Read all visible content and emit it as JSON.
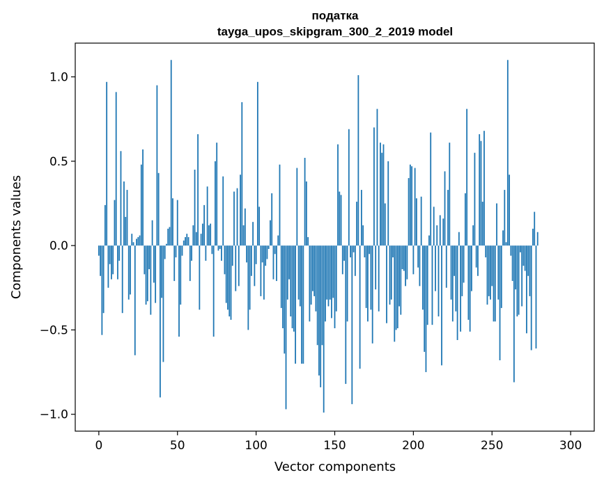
{
  "chart_data": {
    "type": "bar",
    "title": "податка",
    "subtitle": "tayga_upos_skipgram_300_2_2019 model",
    "xlabel": "Vector components",
    "ylabel": "Components values",
    "xlim": [
      -15,
      315
    ],
    "ylim": [
      -1.1,
      1.2
    ],
    "xticks": [
      0,
      50,
      100,
      150,
      200,
      250,
      300
    ],
    "yticks": [
      -1.0,
      -0.5,
      0.0,
      0.5,
      1.0
    ],
    "xtick_labels": [
      "0",
      "50",
      "100",
      "150",
      "200",
      "250",
      "300"
    ],
    "ytick_labels": [
      "−1.0",
      "−0.5",
      "0.0",
      "0.5",
      "1.0"
    ],
    "bar_color": "#1f77b4",
    "grid": false,
    "values": [
      -0.06,
      -0.18,
      -0.53,
      -0.4,
      0.24,
      0.97,
      -0.25,
      -0.11,
      -0.2,
      -0.17,
      0.27,
      0.91,
      -0.2,
      -0.09,
      0.56,
      -0.4,
      0.38,
      0.17,
      0.33,
      -0.32,
      -0.29,
      0.07,
      0.02,
      -0.65,
      0.04,
      0.05,
      0.06,
      0.48,
      0.57,
      -0.17,
      -0.35,
      -0.33,
      -0.14,
      -0.41,
      0.15,
      -0.22,
      -0.34,
      0.95,
      0.43,
      -0.9,
      -0.31,
      -0.69,
      -0.08,
      0.01,
      0.1,
      0.11,
      1.1,
      0.28,
      -0.21,
      -0.07,
      0.27,
      -0.54,
      -0.35,
      -0.06,
      0.03,
      0.05,
      0.07,
      0.05,
      -0.21,
      -0.09,
      0.12,
      0.45,
      0.08,
      0.66,
      -0.38,
      0.07,
      0.13,
      0.24,
      -0.09,
      0.35,
      0.12,
      0.13,
      -0.05,
      -0.54,
      0.5,
      0.61,
      -0.03,
      -0.02,
      -0.09,
      0.41,
      -0.17,
      -0.34,
      -0.38,
      -0.42,
      -0.44,
      -0.12,
      0.32,
      -0.27,
      0.34,
      -0.24,
      0.42,
      0.85,
      0.12,
      0.22,
      -0.1,
      -0.5,
      -0.38,
      -0.18,
      0.14,
      -0.24,
      -0.11,
      0.97,
      0.23,
      -0.3,
      -0.1,
      -0.32,
      -0.12,
      -0.08,
      -0.02,
      0.15,
      0.31,
      -0.2,
      -0.05,
      -0.21,
      0.06,
      0.48,
      -0.37,
      -0.49,
      -0.64,
      -0.97,
      -0.32,
      -0.2,
      -0.42,
      -0.49,
      -0.51,
      -0.7,
      0.46,
      -0.32,
      -0.36,
      -0.7,
      -0.7,
      0.52,
      0.38,
      0.05,
      -0.45,
      -0.35,
      -0.27,
      -0.3,
      -0.39,
      -0.59,
      -0.77,
      -0.84,
      -0.59,
      -0.99,
      -0.45,
      -0.32,
      -0.36,
      -0.32,
      -0.43,
      -0.31,
      -0.49,
      -0.39,
      0.6,
      0.32,
      0.3,
      -0.17,
      -0.09,
      -0.82,
      -0.45,
      0.69,
      -0.07,
      -0.94,
      -0.04,
      -0.18,
      0.26,
      1.01,
      -0.73,
      0.33,
      0.12,
      -0.07,
      -0.37,
      -0.45,
      -0.05,
      -0.38,
      -0.58,
      0.7,
      -0.26,
      0.81,
      -0.39,
      0.61,
      0.55,
      0.6,
      0.25,
      -0.46,
      0.5,
      -0.35,
      -0.32,
      -0.07,
      -0.57,
      -0.5,
      -0.49,
      -0.36,
      -0.41,
      -0.14,
      -0.15,
      -0.24,
      -0.2,
      0.4,
      0.48,
      0.47,
      -0.17,
      0.46,
      0.28,
      -0.13,
      -0.24,
      0.29,
      -0.38,
      -0.63,
      -0.75,
      -0.47,
      0.06,
      0.67,
      -0.47,
      0.23,
      -0.27,
      0.12,
      -0.42,
      0.18,
      -0.71,
      0.16,
      0.44,
      -0.25,
      0.33,
      0.61,
      -0.32,
      -0.45,
      -0.18,
      -0.39,
      -0.56,
      0.08,
      -0.51,
      -0.3,
      -0.22,
      0.31,
      0.81,
      -0.44,
      -0.51,
      -0.27,
      0.12,
      0.55,
      -0.13,
      -0.18,
      0.66,
      0.62,
      0.26,
      0.68,
      -0.07,
      -0.35,
      -0.3,
      -0.32,
      -0.24,
      -0.45,
      -0.45,
      0.25,
      -0.32,
      -0.68,
      -0.37,
      0.09,
      0.33,
      0.02,
      1.1,
      0.42,
      -0.06,
      -0.21,
      -0.81,
      -0.26,
      -0.42,
      -0.41,
      -0.04,
      -0.36,
      -0.12,
      -0.15,
      -0.52,
      -0.18,
      -0.3,
      -0.62,
      0.1,
      0.2,
      -0.61,
      0.08
    ]
  }
}
